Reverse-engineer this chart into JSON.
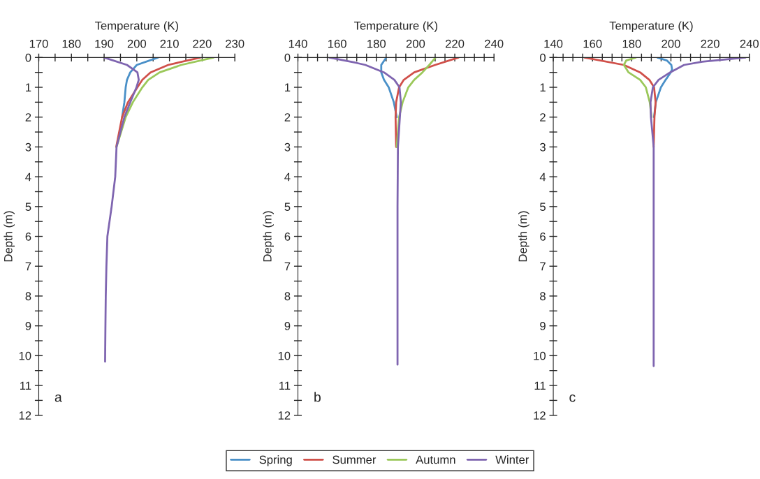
{
  "chart_data": [
    {
      "type": "line",
      "xlabel": "Temperature (K)",
      "ylabel": "Depth (m)",
      "annotations": [
        "a"
      ],
      "xlim": [
        170,
        230
      ],
      "ylim": [
        12,
        0
      ],
      "xticks": [
        170,
        {
          "value": 175,
          "label": null
        },
        180,
        {
          "value": 185,
          "label": null
        },
        190,
        {
          "value": 195,
          "label": null
        },
        200,
        {
          "value": 205,
          "label": null
        },
        210,
        {
          "value": 215,
          "label": null
        },
        220,
        {
          "value": 225,
          "label": null
        },
        230
      ],
      "yticks": [
        0,
        {
          "value": 0.5,
          "label": null
        },
        1,
        {
          "value": 1.5,
          "label": null
        },
        2,
        {
          "value": 2.5,
          "label": null
        },
        3,
        {
          "value": 3.5,
          "label": null
        },
        4,
        {
          "value": 4.5,
          "label": null
        },
        5,
        {
          "value": 5.5,
          "label": null
        },
        6,
        {
          "value": 6.5,
          "label": null
        },
        7,
        {
          "value": 7.5,
          "label": null
        },
        8,
        {
          "value": 8.5,
          "label": null
        },
        9,
        {
          "value": 9.5,
          "label": null
        },
        10,
        {
          "value": 10.5,
          "label": null
        },
        11,
        {
          "value": 11.5,
          "label": null
        },
        12
      ],
      "grid": false,
      "legend": "bottom",
      "series": [
        {
          "name": "Spring",
          "color": "#4a90c8",
          "x": [
            206.5,
            200,
            198,
            197,
            196.6,
            196.2,
            195.5
          ],
          "values": [
            0,
            0.25,
            0.5,
            0.75,
            1,
            1.5,
            2
          ]
        },
        {
          "name": "Summer",
          "color": "#d0504a",
          "x": [
            219.5,
            209.6,
            204.2,
            201.7,
            200.2,
            197.3,
            195.5,
            193.7
          ],
          "values": [
            0,
            0.25,
            0.5,
            0.75,
            1,
            1.5,
            2,
            3
          ]
        },
        {
          "name": "Autumn",
          "color": "#9bc85a",
          "x": [
            223.5,
            213.6,
            207,
            203.5,
            201.7,
            198.8,
            196.6,
            193.8
          ],
          "values": [
            0,
            0.25,
            0.5,
            0.75,
            1,
            1.5,
            2,
            3
          ]
        },
        {
          "name": "Winter",
          "color": "#7f65b0",
          "x": [
            190,
            197,
            200.2,
            200.6,
            199.9,
            198,
            196.2,
            193.8,
            193.4,
            192.3,
            191.0,
            190.7,
            190.5,
            190.4,
            190.3
          ],
          "values": [
            0,
            0.25,
            0.5,
            0.75,
            1,
            1.5,
            2,
            3,
            4,
            5,
            6,
            7,
            8,
            9,
            10.2
          ]
        }
      ]
    },
    {
      "type": "line",
      "xlabel": "Temperature (K)",
      "ylabel": "Depth (m)",
      "annotations": [
        "b"
      ],
      "xlim": [
        140,
        240
      ],
      "ylim": [
        12,
        0
      ],
      "xticks": [
        140,
        {
          "value": 145,
          "label": null
        },
        {
          "value": 150,
          "label": null
        },
        {
          "value": 155,
          "label": null
        },
        160,
        {
          "value": 165,
          "label": null
        },
        {
          "value": 170,
          "label": null
        },
        {
          "value": 175,
          "label": null
        },
        180,
        {
          "value": 185,
          "label": null
        },
        {
          "value": 190,
          "label": null
        },
        {
          "value": 195,
          "label": null
        },
        200,
        {
          "value": 205,
          "label": null
        },
        {
          "value": 210,
          "label": null
        },
        {
          "value": 215,
          "label": null
        },
        220,
        {
          "value": 225,
          "label": null
        },
        {
          "value": 230,
          "label": null
        },
        {
          "value": 235,
          "label": null
        },
        240
      ],
      "yticks": [
        0,
        {
          "value": 0.5,
          "label": null
        },
        1,
        {
          "value": 1.5,
          "label": null
        },
        2,
        {
          "value": 2.5,
          "label": null
        },
        3,
        {
          "value": 3.5,
          "label": null
        },
        4,
        {
          "value": 4.5,
          "label": null
        },
        5,
        {
          "value": 5.5,
          "label": null
        },
        6,
        {
          "value": 6.5,
          "label": null
        },
        7,
        {
          "value": 7.5,
          "label": null
        },
        8,
        {
          "value": 8.5,
          "label": null
        },
        9,
        {
          "value": 9.5,
          "label": null
        },
        10,
        {
          "value": 10.5,
          "label": null
        },
        11,
        {
          "value": 11.5,
          "label": null
        },
        12
      ],
      "grid": false,
      "series": [
        {
          "color": "#4a90c8",
          "x": [
            185.1,
            182.5,
            182.5,
            183.9,
            186.3,
            188.9,
            190.4
          ],
          "values": [
            0,
            0.25,
            0.5,
            0.75,
            1,
            1.5,
            2
          ]
        },
        {
          "color": "#d0504a",
          "x": [
            221.9,
            210,
            199.3,
            194,
            191.6,
            190.1,
            189.8,
            190.1
          ],
          "values": [
            0,
            0.25,
            0.5,
            0.75,
            1,
            1.5,
            2,
            3
          ]
        },
        {
          "color": "#9bc85a",
          "x": [
            210.2,
            207,
            203.5,
            199.3,
            196.3,
            193.4,
            191.6,
            190.4
          ],
          "values": [
            0,
            0.25,
            0.5,
            0.75,
            1,
            1.5,
            2,
            3
          ]
        },
        {
          "color": "#7f65b0",
          "x": [
            156,
            169.7,
            174.4,
            183.9,
            189.2,
            191.8,
            192.5,
            192,
            191,
            190.8,
            190.8
          ],
          "values": [
            0,
            0.18,
            0.25,
            0.5,
            0.75,
            1,
            1.5,
            2,
            3,
            5,
            10.3
          ]
        }
      ]
    },
    {
      "type": "line",
      "xlabel": "Temperature (K)",
      "ylabel": "Depth (m)",
      "annotations": [
        "c"
      ],
      "xlim": [
        140,
        240
      ],
      "ylim": [
        12,
        0
      ],
      "xticks": [
        140,
        {
          "value": 145,
          "label": null
        },
        {
          "value": 150,
          "label": null
        },
        {
          "value": 155,
          "label": null
        },
        160,
        {
          "value": 165,
          "label": null
        },
        {
          "value": 170,
          "label": null
        },
        {
          "value": 175,
          "label": null
        },
        180,
        {
          "value": 185,
          "label": null
        },
        {
          "value": 190,
          "label": null
        },
        {
          "value": 195,
          "label": null
        },
        200,
        {
          "value": 205,
          "label": null
        },
        {
          "value": 210,
          "label": null
        },
        {
          "value": 215,
          "label": null
        },
        220,
        {
          "value": 225,
          "label": null
        },
        {
          "value": 230,
          "label": null
        },
        {
          "value": 235,
          "label": null
        },
        240
      ],
      "yticks": [
        0,
        {
          "value": 0.5,
          "label": null
        },
        1,
        {
          "value": 1.5,
          "label": null
        },
        2,
        {
          "value": 2.5,
          "label": null
        },
        3,
        {
          "value": 3.5,
          "label": null
        },
        4,
        {
          "value": 4.5,
          "label": null
        },
        5,
        {
          "value": 5.5,
          "label": null
        },
        6,
        {
          "value": 6.5,
          "label": null
        },
        7,
        {
          "value": 7.5,
          "label": null
        },
        8,
        {
          "value": 8.5,
          "label": null
        },
        9,
        {
          "value": 9.5,
          "label": null
        },
        10,
        {
          "value": 10.5,
          "label": null
        },
        11,
        {
          "value": 11.5,
          "label": null
        },
        12
      ],
      "grid": false,
      "series": [
        {
          "color": "#4a90c8",
          "x": [
            193.1,
            197.9,
            200.2,
            200.6,
            199.9,
            197.3,
            194.9,
            192.3,
            191.4
          ],
          "values": [
            0,
            0.1,
            0.25,
            0.4,
            0.5,
            0.75,
            1,
            1.5,
            2
          ]
        },
        {
          "color": "#d0504a",
          "x": [
            155.9,
            176,
            184.3,
            189,
            191.4,
            192.2,
            191.6,
            191.2
          ],
          "values": [
            0,
            0.25,
            0.5,
            0.75,
            1,
            1.5,
            2,
            3
          ]
        },
        {
          "color": "#9bc85a",
          "x": [
            182.1,
            177.2,
            176,
            178.4,
            184.3,
            187.2,
            189.2,
            190.1
          ],
          "values": [
            0,
            0.1,
            0.25,
            0.5,
            0.75,
            1,
            1.5,
            2
          ]
        },
        {
          "color": "#7f65b0",
          "x": [
            238,
            216,
            206.7,
            199.6,
            193.7,
            190.8,
            189.6,
            189.8,
            191.2,
            191.2
          ],
          "values": [
            0,
            0.14,
            0.25,
            0.5,
            0.75,
            1,
            1.5,
            2,
            3,
            10.35
          ]
        }
      ]
    }
  ]
}
